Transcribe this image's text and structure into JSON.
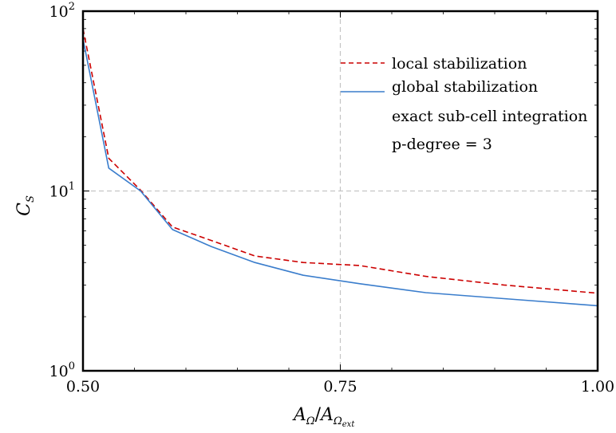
{
  "chart_data": {
    "type": "line",
    "xlabel": {
      "base": "A",
      "sub": "Ω",
      "den_base": "A",
      "den_sub": "Ω",
      "den_subsub": "ext"
    },
    "ylabel": {
      "base": "C",
      "sub": "S"
    },
    "xlim": [
      0.5,
      1.0
    ],
    "ylim": [
      1,
      100
    ],
    "yscale": "log",
    "grid": true,
    "x_ticks": [
      0.5,
      0.75,
      1.0
    ],
    "x_tick_labels": [
      "0.50",
      "0.75",
      "1.00"
    ],
    "y_ticks": [
      1,
      10,
      100
    ],
    "y_tick_labels": [
      {
        "base": "10",
        "exp": "0"
      },
      {
        "base": "10",
        "exp": "1"
      },
      {
        "base": "10",
        "exp": "2"
      }
    ],
    "legend_position": "top-right",
    "series": [
      {
        "name": "local stabilization",
        "color": "#cc0000",
        "style": "dashed",
        "x": [
          0.5,
          0.525,
          0.556,
          0.587,
          0.625,
          0.667,
          0.714,
          0.769,
          0.833,
          0.909,
          1.0
        ],
        "y": [
          80,
          15.2,
          10.1,
          6.3,
          5.3,
          4.35,
          4.0,
          3.85,
          3.35,
          3.0,
          2.7
        ]
      },
      {
        "name": "global stabilization",
        "color": "#3a7dcc",
        "style": "solid",
        "x": [
          0.5,
          0.525,
          0.556,
          0.587,
          0.625,
          0.667,
          0.714,
          0.769,
          0.833,
          0.909,
          1.0
        ],
        "y": [
          70,
          13.4,
          10.0,
          6.1,
          4.9,
          4.0,
          3.4,
          3.05,
          2.72,
          2.52,
          2.3
        ]
      }
    ],
    "annotations": [
      "exact sub-cell integration",
      "p-degree = 3"
    ]
  }
}
